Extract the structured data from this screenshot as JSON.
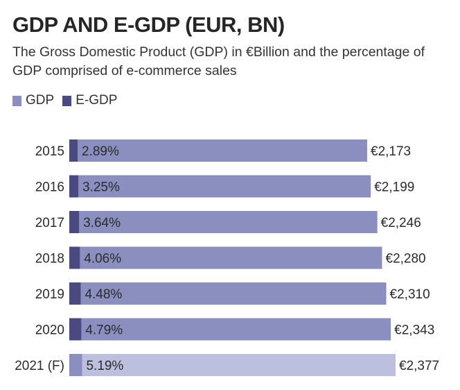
{
  "chart_data": {
    "type": "bar",
    "orientation": "horizontal",
    "stacked": true,
    "title": "GDP AND E-GDP (EUR, BN)",
    "subtitle": "The Gross Domestic Product (GDP) in €Billion and the percentage of GDP comprised of e-commerce sales",
    "categories": [
      "2015",
      "2016",
      "2017",
      "2018",
      "2019",
      "2020",
      "2021 (F)"
    ],
    "series": [
      {
        "name": "GDP",
        "values": [
          2173,
          2199,
          2246,
          2280,
          2310,
          2343,
          2377
        ],
        "color": "#8a8fbf"
      },
      {
        "name": "E-GDP",
        "percent": [
          2.89,
          3.25,
          3.64,
          4.06,
          4.48,
          4.79,
          5.19
        ],
        "color": "#4a4a80"
      }
    ],
    "value_labels": [
      "€2,173",
      "€2,199",
      "€2,246",
      "€2,280",
      "€2,310",
      "€2,343",
      "€2,377"
    ],
    "percent_labels": [
      "2.89%",
      "3.25%",
      "3.64%",
      "4.06%",
      "4.48%",
      "4.79%",
      "5.19%"
    ],
    "forecast": [
      false,
      false,
      false,
      false,
      false,
      false,
      true
    ],
    "forecast_colors": {
      "gdp": "#bcc0de",
      "egdp": "#8a8fbf"
    },
    "legend_position": "top-left",
    "grid": false
  }
}
